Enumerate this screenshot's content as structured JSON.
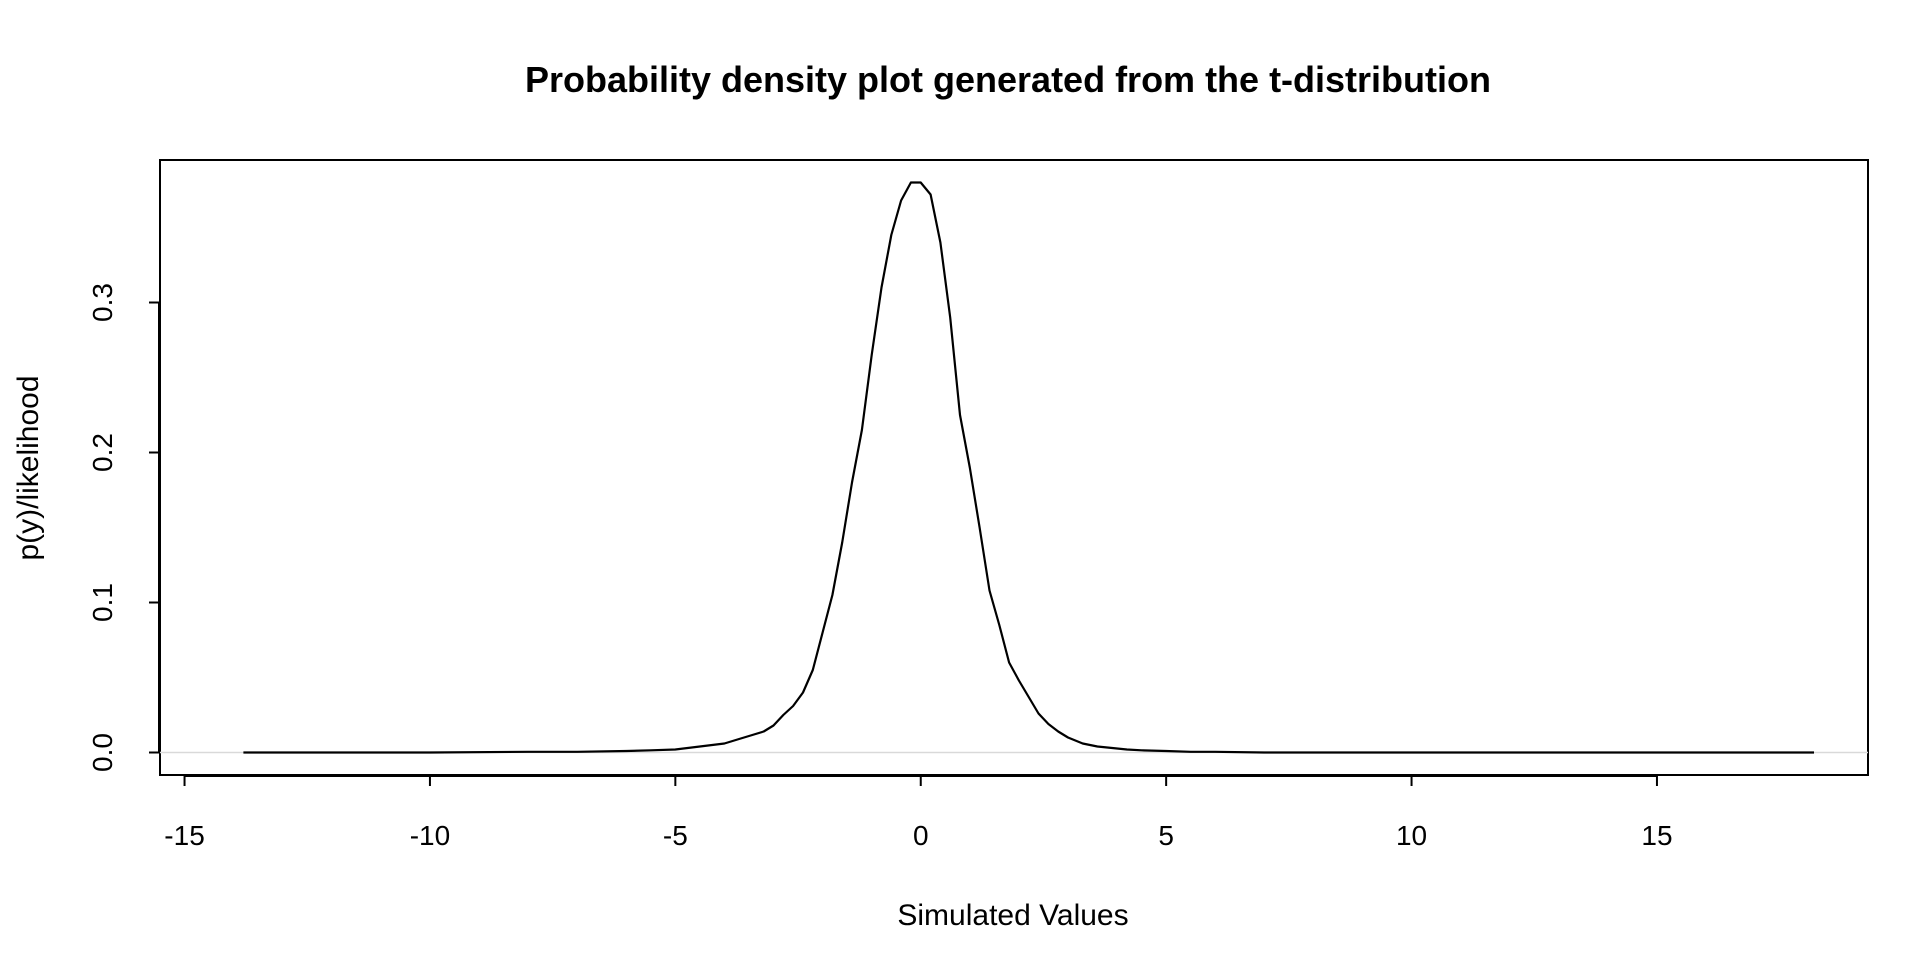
{
  "chart_data": {
    "type": "line",
    "title": "Probability density plot generated from the t-distribution",
    "xlabel": "Simulated Values",
    "ylabel": "p(y)/likelihood",
    "xlim": [
      -15.5,
      19.3
    ],
    "ylim": [
      -0.015,
      0.395
    ],
    "xticks": [
      -15,
      -10,
      -5,
      0,
      5,
      10,
      15
    ],
    "xtick_labels": [
      "-15",
      "-10",
      "-5",
      "0",
      "5",
      "10",
      "15"
    ],
    "yticks": [
      0.0,
      0.1,
      0.2,
      0.3
    ],
    "ytick_labels": [
      "0.0",
      "0.1",
      "0.2",
      "0.3"
    ],
    "grid": false,
    "legend": "none",
    "colors": {
      "line": "#000000",
      "zero_line": "#d9d9d9",
      "frame": "#000000"
    },
    "series": [
      {
        "x": [
          -13.8,
          -12,
          -10,
          -8,
          -7,
          -6,
          -5.5,
          -5,
          -4.5,
          -4,
          -3.7,
          -3.5,
          -3.2,
          -3,
          -2.8,
          -2.6,
          -2.4,
          -2.2,
          -2.0,
          -1.8,
          -1.6,
          -1.4,
          -1.2,
          -1.0,
          -0.8,
          -0.6,
          -0.4,
          -0.2,
          0.0,
          0.2,
          0.4,
          0.6,
          0.8,
          1.0,
          1.2,
          1.4,
          1.6,
          1.8,
          2.0,
          2.2,
          2.4,
          2.6,
          2.8,
          3.0,
          3.3,
          3.6,
          3.9,
          4.2,
          4.5,
          5,
          5.5,
          6,
          7,
          8,
          9,
          10,
          12,
          14,
          16,
          18.2
        ],
        "y": [
          0,
          0,
          0,
          0.0005,
          0.0005,
          0.001,
          0.0015,
          0.002,
          0.004,
          0.006,
          0.009,
          0.011,
          0.014,
          0.018,
          0.025,
          0.031,
          0.04,
          0.055,
          0.08,
          0.105,
          0.14,
          0.18,
          0.215,
          0.265,
          0.31,
          0.345,
          0.368,
          0.38,
          0.38,
          0.372,
          0.34,
          0.29,
          0.225,
          0.19,
          0.15,
          0.108,
          0.085,
          0.06,
          0.048,
          0.037,
          0.026,
          0.019,
          0.014,
          0.01,
          0.006,
          0.004,
          0.003,
          0.002,
          0.0015,
          0.001,
          0.0005,
          0.0005,
          0,
          0,
          0,
          0,
          0,
          0,
          0,
          0
        ]
      }
    ]
  }
}
